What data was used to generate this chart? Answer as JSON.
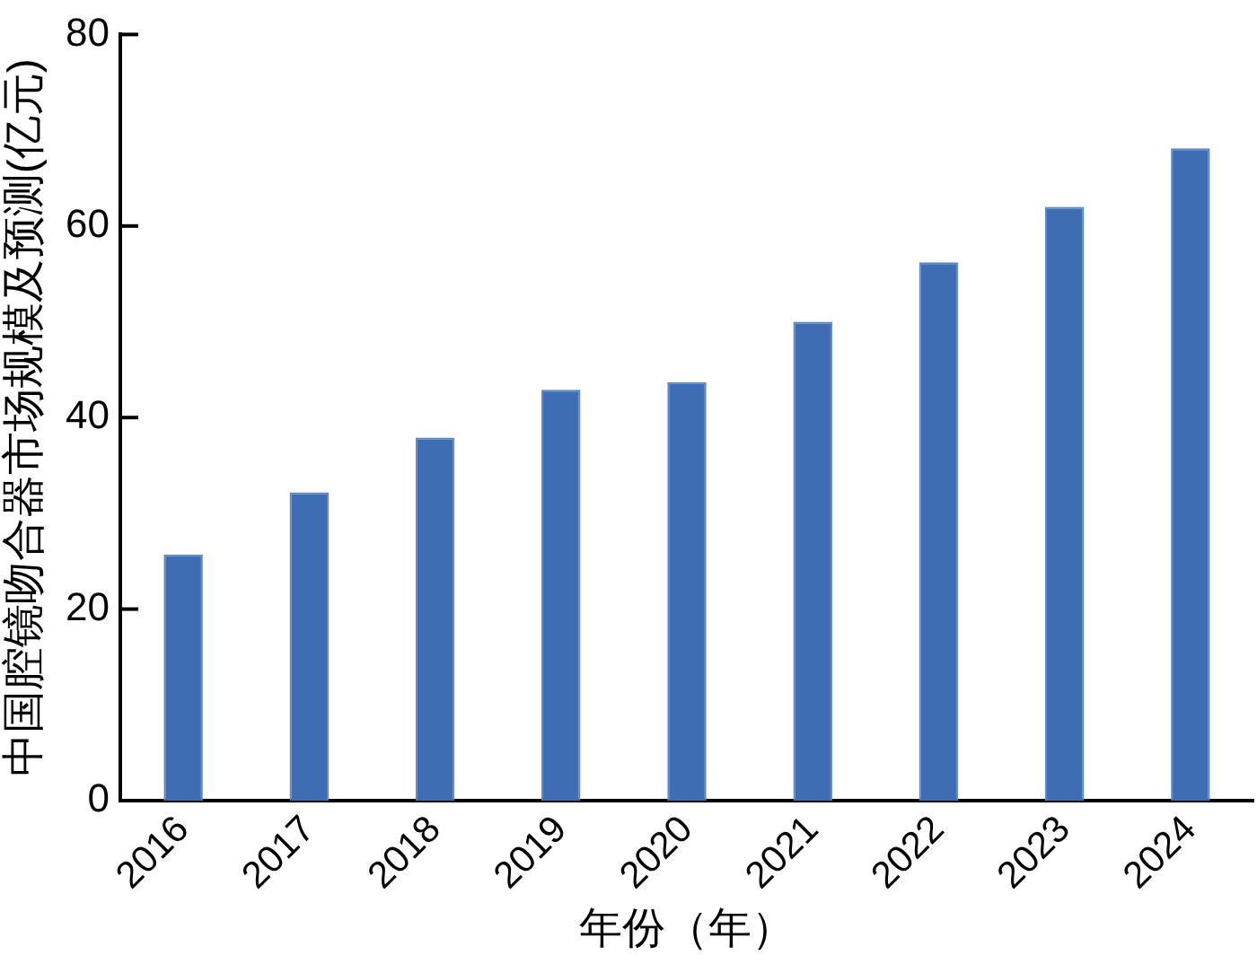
{
  "chart_data": {
    "type": "bar",
    "xlabel": "年份（年）",
    "ylabel": "中国腔镜吻合器市场规模及预测(亿元)",
    "categories": [
      "2016",
      "2017",
      "2018",
      "2019",
      "2020",
      "2021",
      "2022",
      "2023",
      "2024"
    ],
    "values": [
      25.7,
      32.2,
      37.9,
      42.9,
      43.7,
      50.0,
      56.2,
      62.0,
      68.1
    ],
    "color": "#3e6db4",
    "ylim": [
      0,
      80
    ],
    "yticks": [
      0,
      20,
      40,
      60,
      80
    ],
    "grid": false,
    "legend": false
  }
}
